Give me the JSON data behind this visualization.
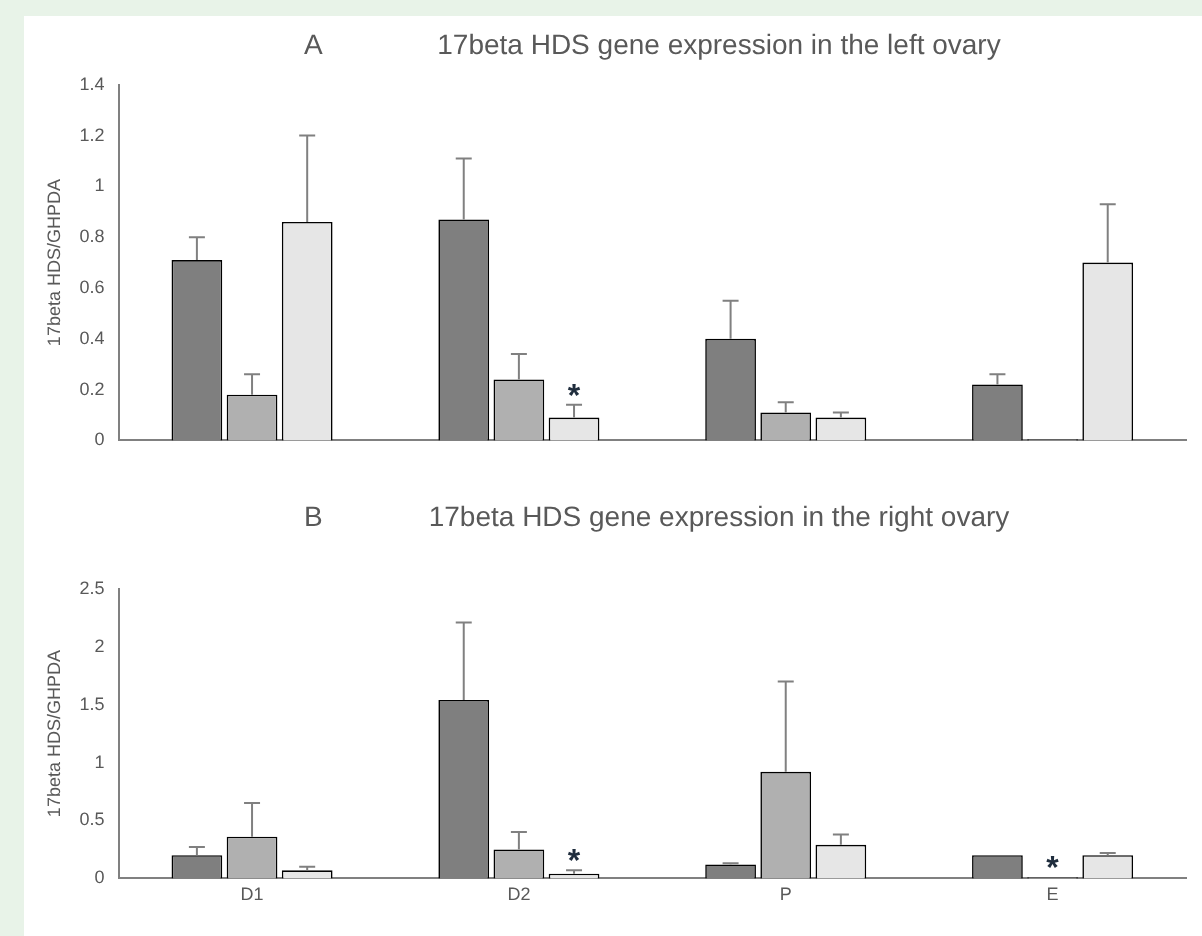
{
  "chart_data": [
    {
      "type": "bar",
      "title": "17beta HDS gene expression in the left ovary",
      "annotations": [
        "A"
      ],
      "ylabel": "17beta HDS/GHPDA",
      "categories": [
        null,
        null,
        null,
        null
      ],
      "series": [
        {
          "color": "#7f7f7f",
          "values": [
            0.71,
            0.87,
            0.4,
            0.22
          ],
          "errors": [
            [
              0.71,
              0.8
            ],
            [
              0.87,
              1.11
            ],
            [
              0.4,
              0.55
            ],
            [
              0.22,
              0.26
            ]
          ]
        },
        {
          "color": "#b0b0b0",
          "values": [
            0.18,
            0.24,
            0.11,
            0.005
          ],
          "errors": [
            [
              0.18,
              0.26
            ],
            [
              0.24,
              0.34
            ],
            [
              0.11,
              0.15
            ],
            null
          ]
        },
        {
          "color": "#e6e6e6",
          "values": [
            0.86,
            0.09,
            0.09,
            0.7
          ],
          "errors": [
            [
              0.86,
              1.2
            ],
            [
              0.09,
              0.14
            ],
            [
              0.09,
              0.11
            ],
            [
              0.7,
              0.93
            ]
          ],
          "value_labels": [
            null,
            "*",
            null,
            null
          ]
        }
      ],
      "ylim": [
        0,
        1.4
      ],
      "yticks": [
        0,
        0.2,
        0.4,
        0.6,
        0.8,
        1,
        1.2,
        1.4
      ],
      "grid": false,
      "legend": false
    },
    {
      "type": "bar",
      "title": "17beta HDS gene expression in the right ovary",
      "annotations": [
        "B"
      ],
      "ylabel": "17beta HDS/GHPDA",
      "categories": [
        "D1",
        "D2",
        "P",
        "E"
      ],
      "series": [
        {
          "color": "#7f7f7f",
          "values": [
            0.2,
            1.54,
            0.12,
            0.2
          ],
          "errors": [
            [
              0.2,
              0.27
            ],
            [
              1.54,
              2.21
            ],
            [
              0.12,
              0.13
            ],
            null
          ]
        },
        {
          "color": "#b0b0b0",
          "values": [
            0.36,
            0.25,
            0.92,
            0.01
          ],
          "errors": [
            [
              0.36,
              0.65
            ],
            [
              0.25,
              0.4
            ],
            [
              0.92,
              1.7
            ],
            null
          ],
          "value_labels": [
            null,
            null,
            null,
            "*"
          ]
        },
        {
          "color": "#e6e6e6",
          "values": [
            0.07,
            0.04,
            0.29,
            0.2
          ],
          "errors": [
            [
              0.07,
              0.1
            ],
            [
              0.04,
              0.07
            ],
            [
              0.29,
              0.38
            ],
            [
              0.2,
              0.22
            ]
          ],
          "value_labels": [
            null,
            "*",
            null,
            null
          ]
        }
      ],
      "ylim": [
        0,
        2.5
      ],
      "yticks": [
        0,
        0.5,
        1,
        1.5,
        2,
        2.5
      ],
      "grid": false,
      "legend": false
    }
  ]
}
